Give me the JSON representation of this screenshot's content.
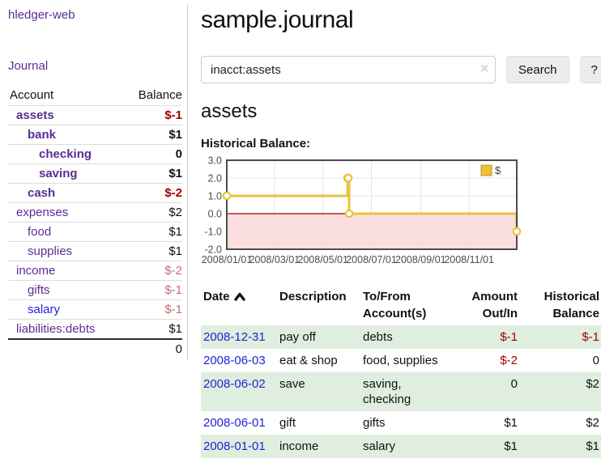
{
  "sidebar": {
    "brand": "hledger-web",
    "journal_label": "Journal",
    "accounts": {
      "header_account": "Account",
      "header_balance": "Balance",
      "rows": [
        {
          "name": "assets",
          "level": 1,
          "emph": true,
          "balance": "$-1",
          "balance_tone": "neg-strong",
          "link_tone": "visited"
        },
        {
          "name": "bank",
          "level": 2,
          "emph": true,
          "balance": "$1",
          "balance_tone": "pos",
          "link_tone": "visited"
        },
        {
          "name": "checking",
          "level": 3,
          "emph": true,
          "balance": "0",
          "balance_tone": "pos",
          "link_tone": "visited"
        },
        {
          "name": "saving",
          "level": 3,
          "emph": true,
          "balance": "$1",
          "balance_tone": "pos",
          "link_tone": "visited"
        },
        {
          "name": "cash",
          "level": 2,
          "emph": true,
          "balance": "$-2",
          "balance_tone": "neg-strong",
          "link_tone": "visited"
        },
        {
          "name": "expenses",
          "level": 1,
          "emph": false,
          "balance": "$2",
          "balance_tone": "pos",
          "link_tone": "visited"
        },
        {
          "name": "food",
          "level": 2,
          "emph": false,
          "balance": "$1",
          "balance_tone": "pos",
          "link_tone": "visited"
        },
        {
          "name": "supplies",
          "level": 2,
          "emph": false,
          "balance": "$1",
          "balance_tone": "pos",
          "link_tone": "visited"
        },
        {
          "name": "income",
          "level": 1,
          "emph": false,
          "balance": "$-2",
          "balance_tone": "neg-muted",
          "link_tone": "visited"
        },
        {
          "name": "gifts",
          "level": 2,
          "emph": false,
          "balance": "$-1",
          "balance_tone": "neg-muted",
          "link_tone": "visited"
        },
        {
          "name": "salary",
          "level": 2,
          "emph": false,
          "balance": "$-1",
          "balance_tone": "neg-muted",
          "link_tone": "unvisited"
        },
        {
          "name": "liabilities:debts",
          "level": 1,
          "emph": false,
          "balance": "$1",
          "balance_tone": "pos",
          "link_tone": "visited"
        }
      ],
      "total": "0"
    }
  },
  "main": {
    "title": "sample.journal",
    "search": {
      "value": "inacct:assets",
      "clear_icon": "×",
      "button_label": "Search",
      "help_label": "?"
    },
    "account_heading": "assets",
    "chart_label": "Historical Balance:"
  },
  "register": {
    "headers": {
      "date": "Date",
      "description": "Description",
      "accounts": "To/From Account(s)",
      "amount": "Amount Out/In",
      "balance": "Historical Balance"
    },
    "sort_column": "date",
    "sort_direction": "ascending",
    "rows": [
      {
        "date": "2008-12-31",
        "description": "pay off",
        "accounts": "debts",
        "amount": "$-1",
        "amount_tone": "neg",
        "balance": "$-1",
        "balance_tone": "neg"
      },
      {
        "date": "2008-06-03",
        "description": "eat & shop",
        "accounts": "food, supplies",
        "amount": "$-2",
        "amount_tone": "neg",
        "balance": "0",
        "balance_tone": "pos"
      },
      {
        "date": "2008-06-02",
        "description": "save",
        "accounts": "saving, checking",
        "amount": "0",
        "amount_tone": "pos",
        "balance": "$2",
        "balance_tone": "pos"
      },
      {
        "date": "2008-06-01",
        "description": "gift",
        "accounts": "gifts",
        "amount": "$1",
        "amount_tone": "pos",
        "balance": "$2",
        "balance_tone": "pos"
      },
      {
        "date": "2008-01-01",
        "description": "income",
        "accounts": "salary",
        "amount": "$1",
        "amount_tone": "pos",
        "balance": "$1",
        "balance_tone": "pos"
      }
    ]
  },
  "chart_data": {
    "type": "line",
    "step": true,
    "title": "Historical Balance:",
    "xlabel": "",
    "ylabel": "",
    "legend": "$",
    "legend_position": "top-right",
    "grid": true,
    "series": [
      {
        "name": "$",
        "color": "#e9c23e",
        "dates": [
          "2008-01-01",
          "2008-06-01",
          "2008-06-02",
          "2008-06-03",
          "2008-12-31"
        ],
        "x_days": [
          0,
          152,
          153,
          154,
          365
        ],
        "values": [
          1,
          2,
          2,
          0,
          -1
        ]
      }
    ],
    "xlim_days": [
      0,
      365
    ],
    "ylim": [
      -2,
      3
    ],
    "ytick_values": [
      3,
      2,
      1,
      0,
      -1,
      -2
    ],
    "ytick_labels": [
      "3.0",
      "2.0",
      "1.0",
      "0.0",
      "-1.0",
      "-2.0"
    ],
    "xticks": [
      {
        "day": 0,
        "label": "2008/01/01"
      },
      {
        "day": 60,
        "label": "2008/03/01"
      },
      {
        "day": 121,
        "label": "2008/05/01"
      },
      {
        "day": 182,
        "label": "2008/07/01"
      },
      {
        "day": 244,
        "label": "2008/09/01"
      },
      {
        "day": 305,
        "label": "2008/11/01"
      }
    ],
    "negative_region_color": "#fcdede",
    "zero_line_color": "#a00000"
  },
  "colors": {
    "accent_purple": "#5b2d91",
    "link_blue": "#2323d8",
    "negative_strong": "#a40000",
    "negative_muted": "#bb7272",
    "row_stripe_green": "#dfeede",
    "chart_line_gold": "#e9c23e",
    "chart_negative_bg": "#fcdede",
    "chart_zero_line": "#a00000",
    "button_bg": "#ececec"
  }
}
